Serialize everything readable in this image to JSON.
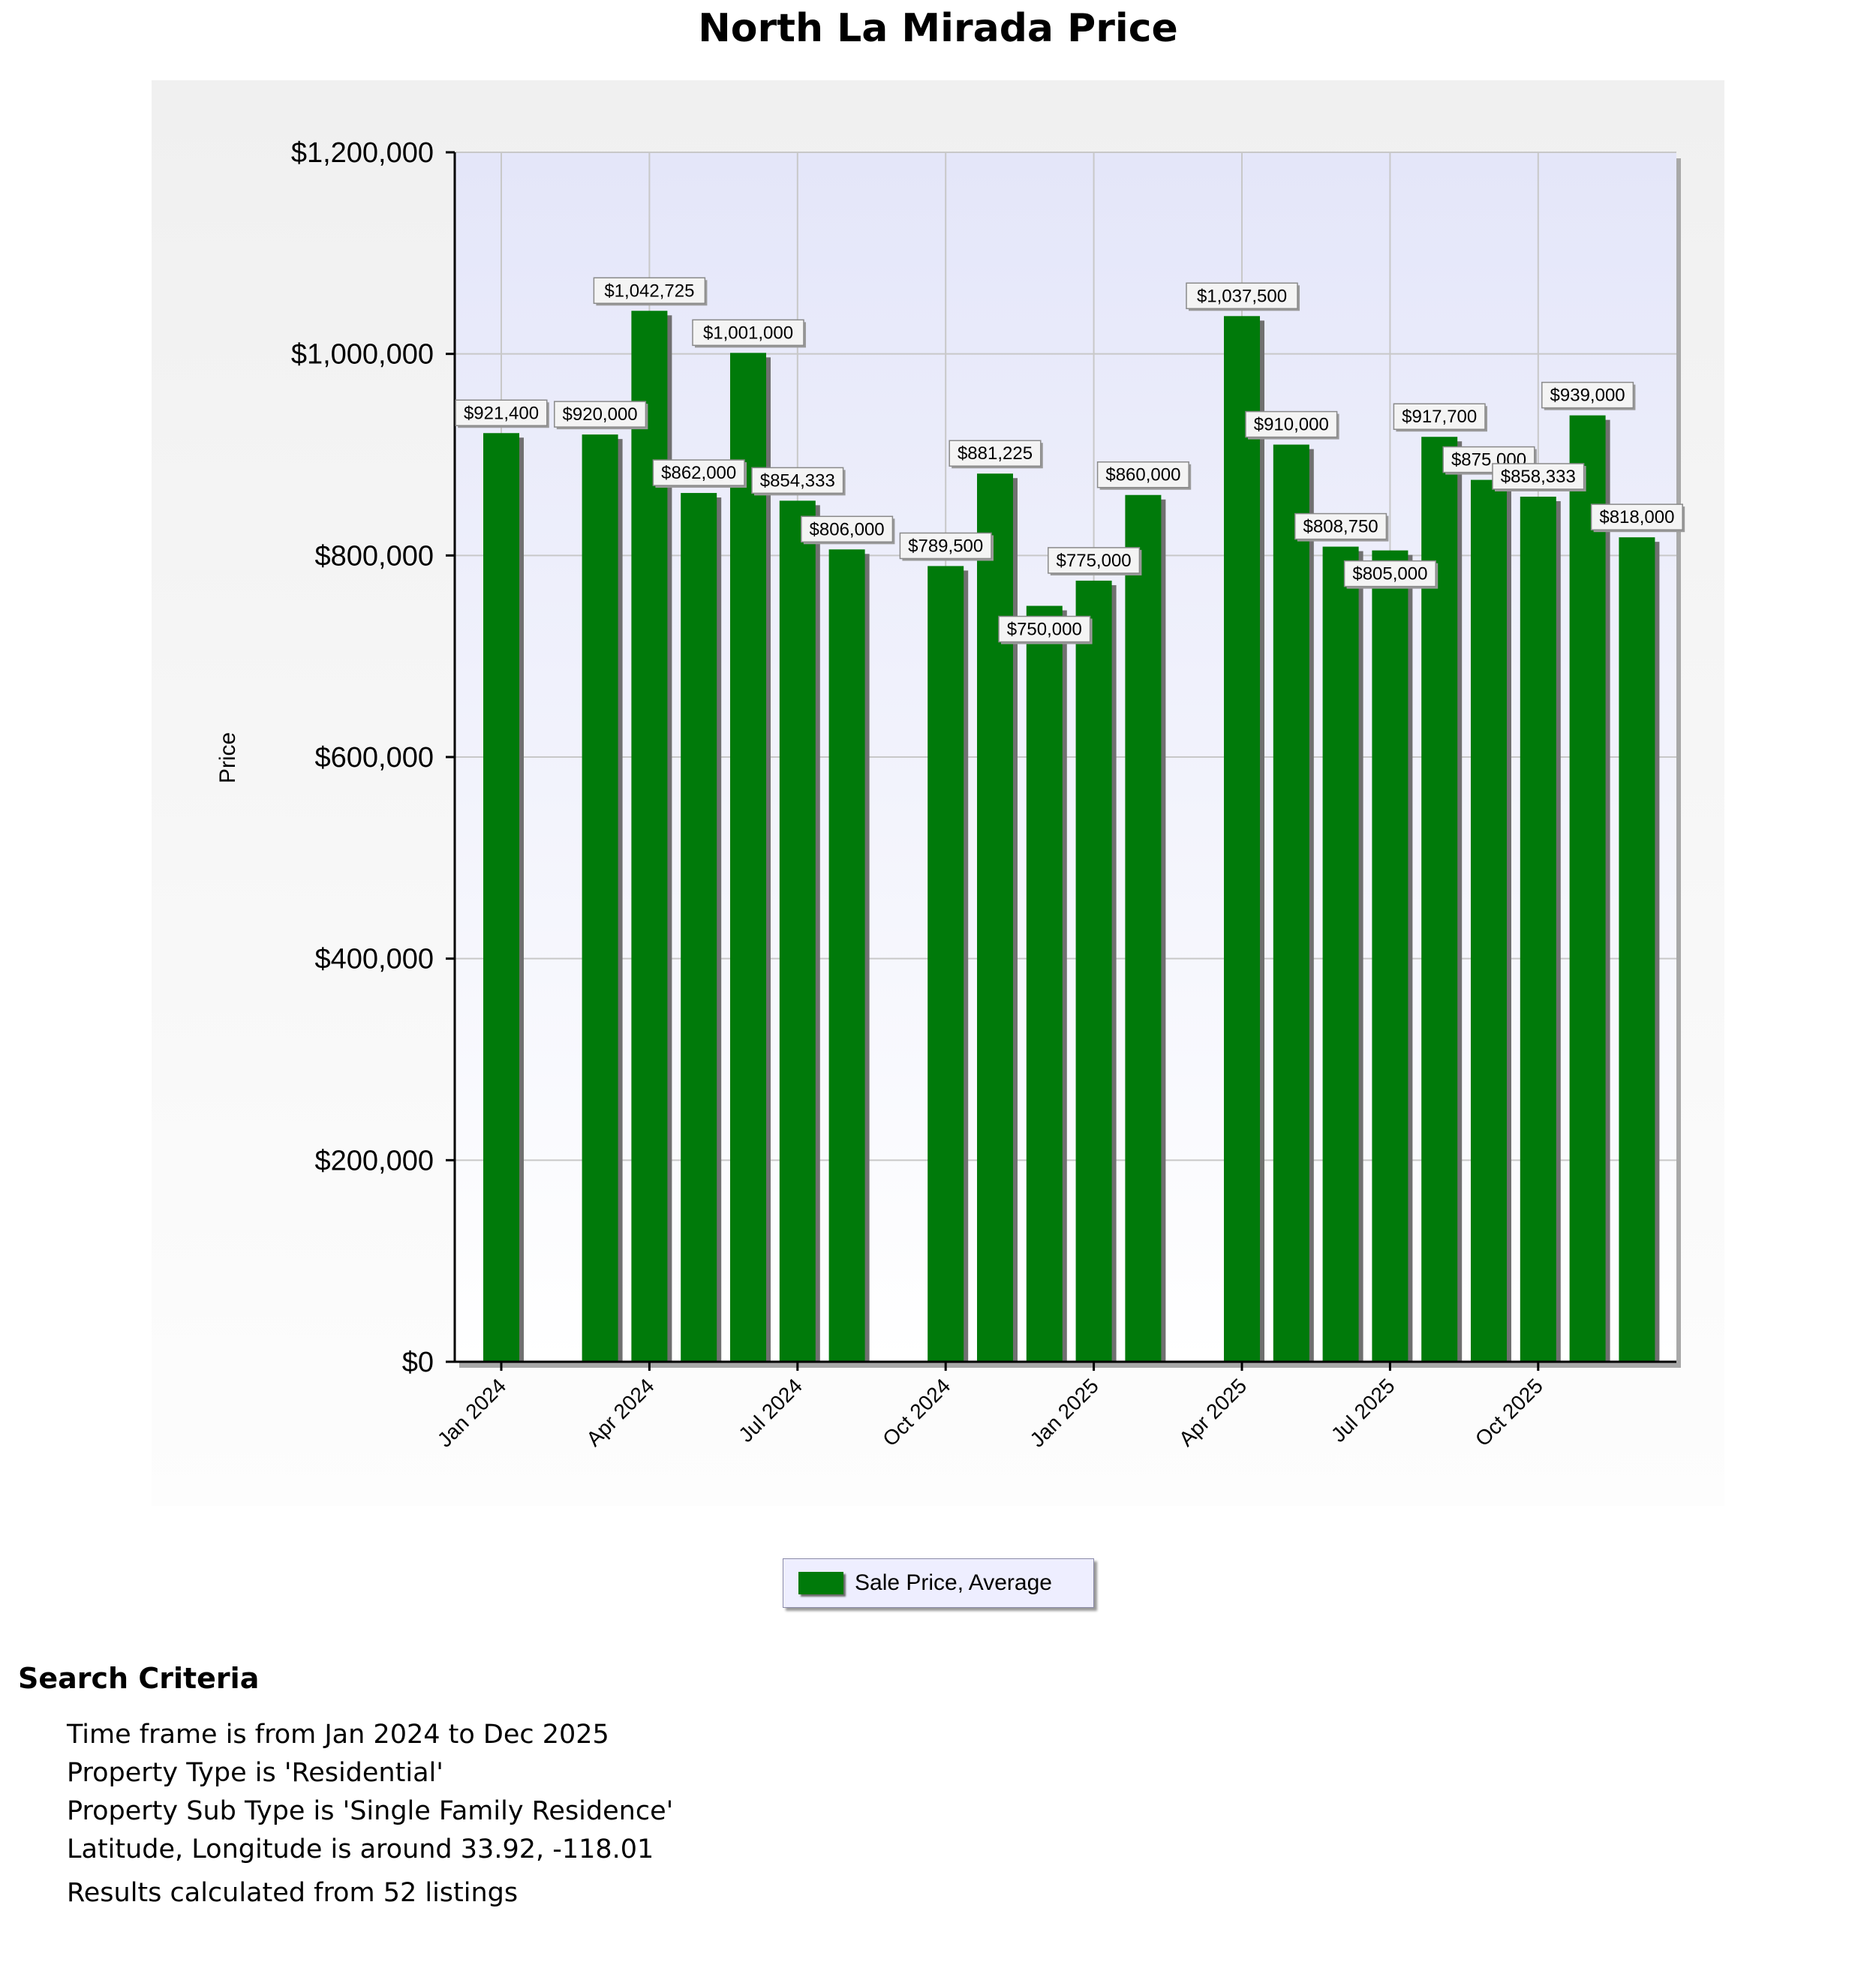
{
  "chart_data": {
    "type": "bar",
    "title": "North La Mirada Price",
    "ylabel": "Price",
    "xlabel": "",
    "ylim": [
      0,
      1200000
    ],
    "y_ticks": [
      "$0",
      "$200,000",
      "$400,000",
      "$600,000",
      "$800,000",
      "$1,000,000",
      "$1,200,000"
    ],
    "y_tick_values": [
      0,
      200000,
      400000,
      600000,
      800000,
      1000000,
      1200000
    ],
    "x_tick_labels": [
      "Jan 2024",
      "Apr 2024",
      "Jul 2024",
      "Oct 2024",
      "Jan 2025",
      "Apr 2025",
      "Jul 2025",
      "Oct 2025"
    ],
    "x_tick_months": [
      "2024-01",
      "2024-04",
      "2024-07",
      "2024-10",
      "2025-01",
      "2025-04",
      "2025-07",
      "2025-10"
    ],
    "grid": true,
    "legend_position": "bottom",
    "series": [
      {
        "name": "Sale Price, Average",
        "color": "#007a0a",
        "points": [
          {
            "month": "2024-01",
            "value": 921400,
            "label": "$921,400"
          },
          {
            "month": "2024-03",
            "value": 920000,
            "label": "$920,000"
          },
          {
            "month": "2024-04",
            "value": 1042725,
            "label": "$1,042,725"
          },
          {
            "month": "2024-05",
            "value": 862000,
            "label": "$862,000"
          },
          {
            "month": "2024-06",
            "value": 1001000,
            "label": "$1,001,000"
          },
          {
            "month": "2024-07",
            "value": 854333,
            "label": "$854,333"
          },
          {
            "month": "2024-08",
            "value": 806000,
            "label": "$806,000"
          },
          {
            "month": "2024-10",
            "value": 789500,
            "label": "$789,500"
          },
          {
            "month": "2024-11",
            "value": 881225,
            "label": "$881,225"
          },
          {
            "month": "2024-12",
            "value": 750000,
            "label": "$750,000"
          },
          {
            "month": "2025-01",
            "value": 775000,
            "label": "$775,000"
          },
          {
            "month": "2025-02",
            "value": 860000,
            "label": "$860,000"
          },
          {
            "month": "2025-04",
            "value": 1037500,
            "label": "$1,037,500"
          },
          {
            "month": "2025-05",
            "value": 910000,
            "label": "$910,000"
          },
          {
            "month": "2025-06",
            "value": 808750,
            "label": "$808,750"
          },
          {
            "month": "2025-07",
            "value": 805000,
            "label": "$805,000"
          },
          {
            "month": "2025-08",
            "value": 917700,
            "label": "$917,700"
          },
          {
            "month": "2025-09",
            "value": 875000,
            "label": "$875,000"
          },
          {
            "month": "2025-10",
            "value": 858333,
            "label": "$858,333"
          },
          {
            "month": "2025-11",
            "value": 939000,
            "label": "$939,000"
          },
          {
            "month": "2025-12",
            "value": 818000,
            "label": "$818,000"
          }
        ]
      }
    ]
  },
  "legend": {
    "label": "Sale Price, Average",
    "color": "#007a0a"
  },
  "criteria": {
    "title": "Search Criteria",
    "lines": [
      "Time frame is from Jan 2024 to Dec 2025",
      "Property Type is 'Residential'",
      "Property Sub Type is 'Single Family Residence'",
      "Latitude, Longitude is around 33.92, -118.01"
    ],
    "results": "Results calculated from 52 listings"
  }
}
